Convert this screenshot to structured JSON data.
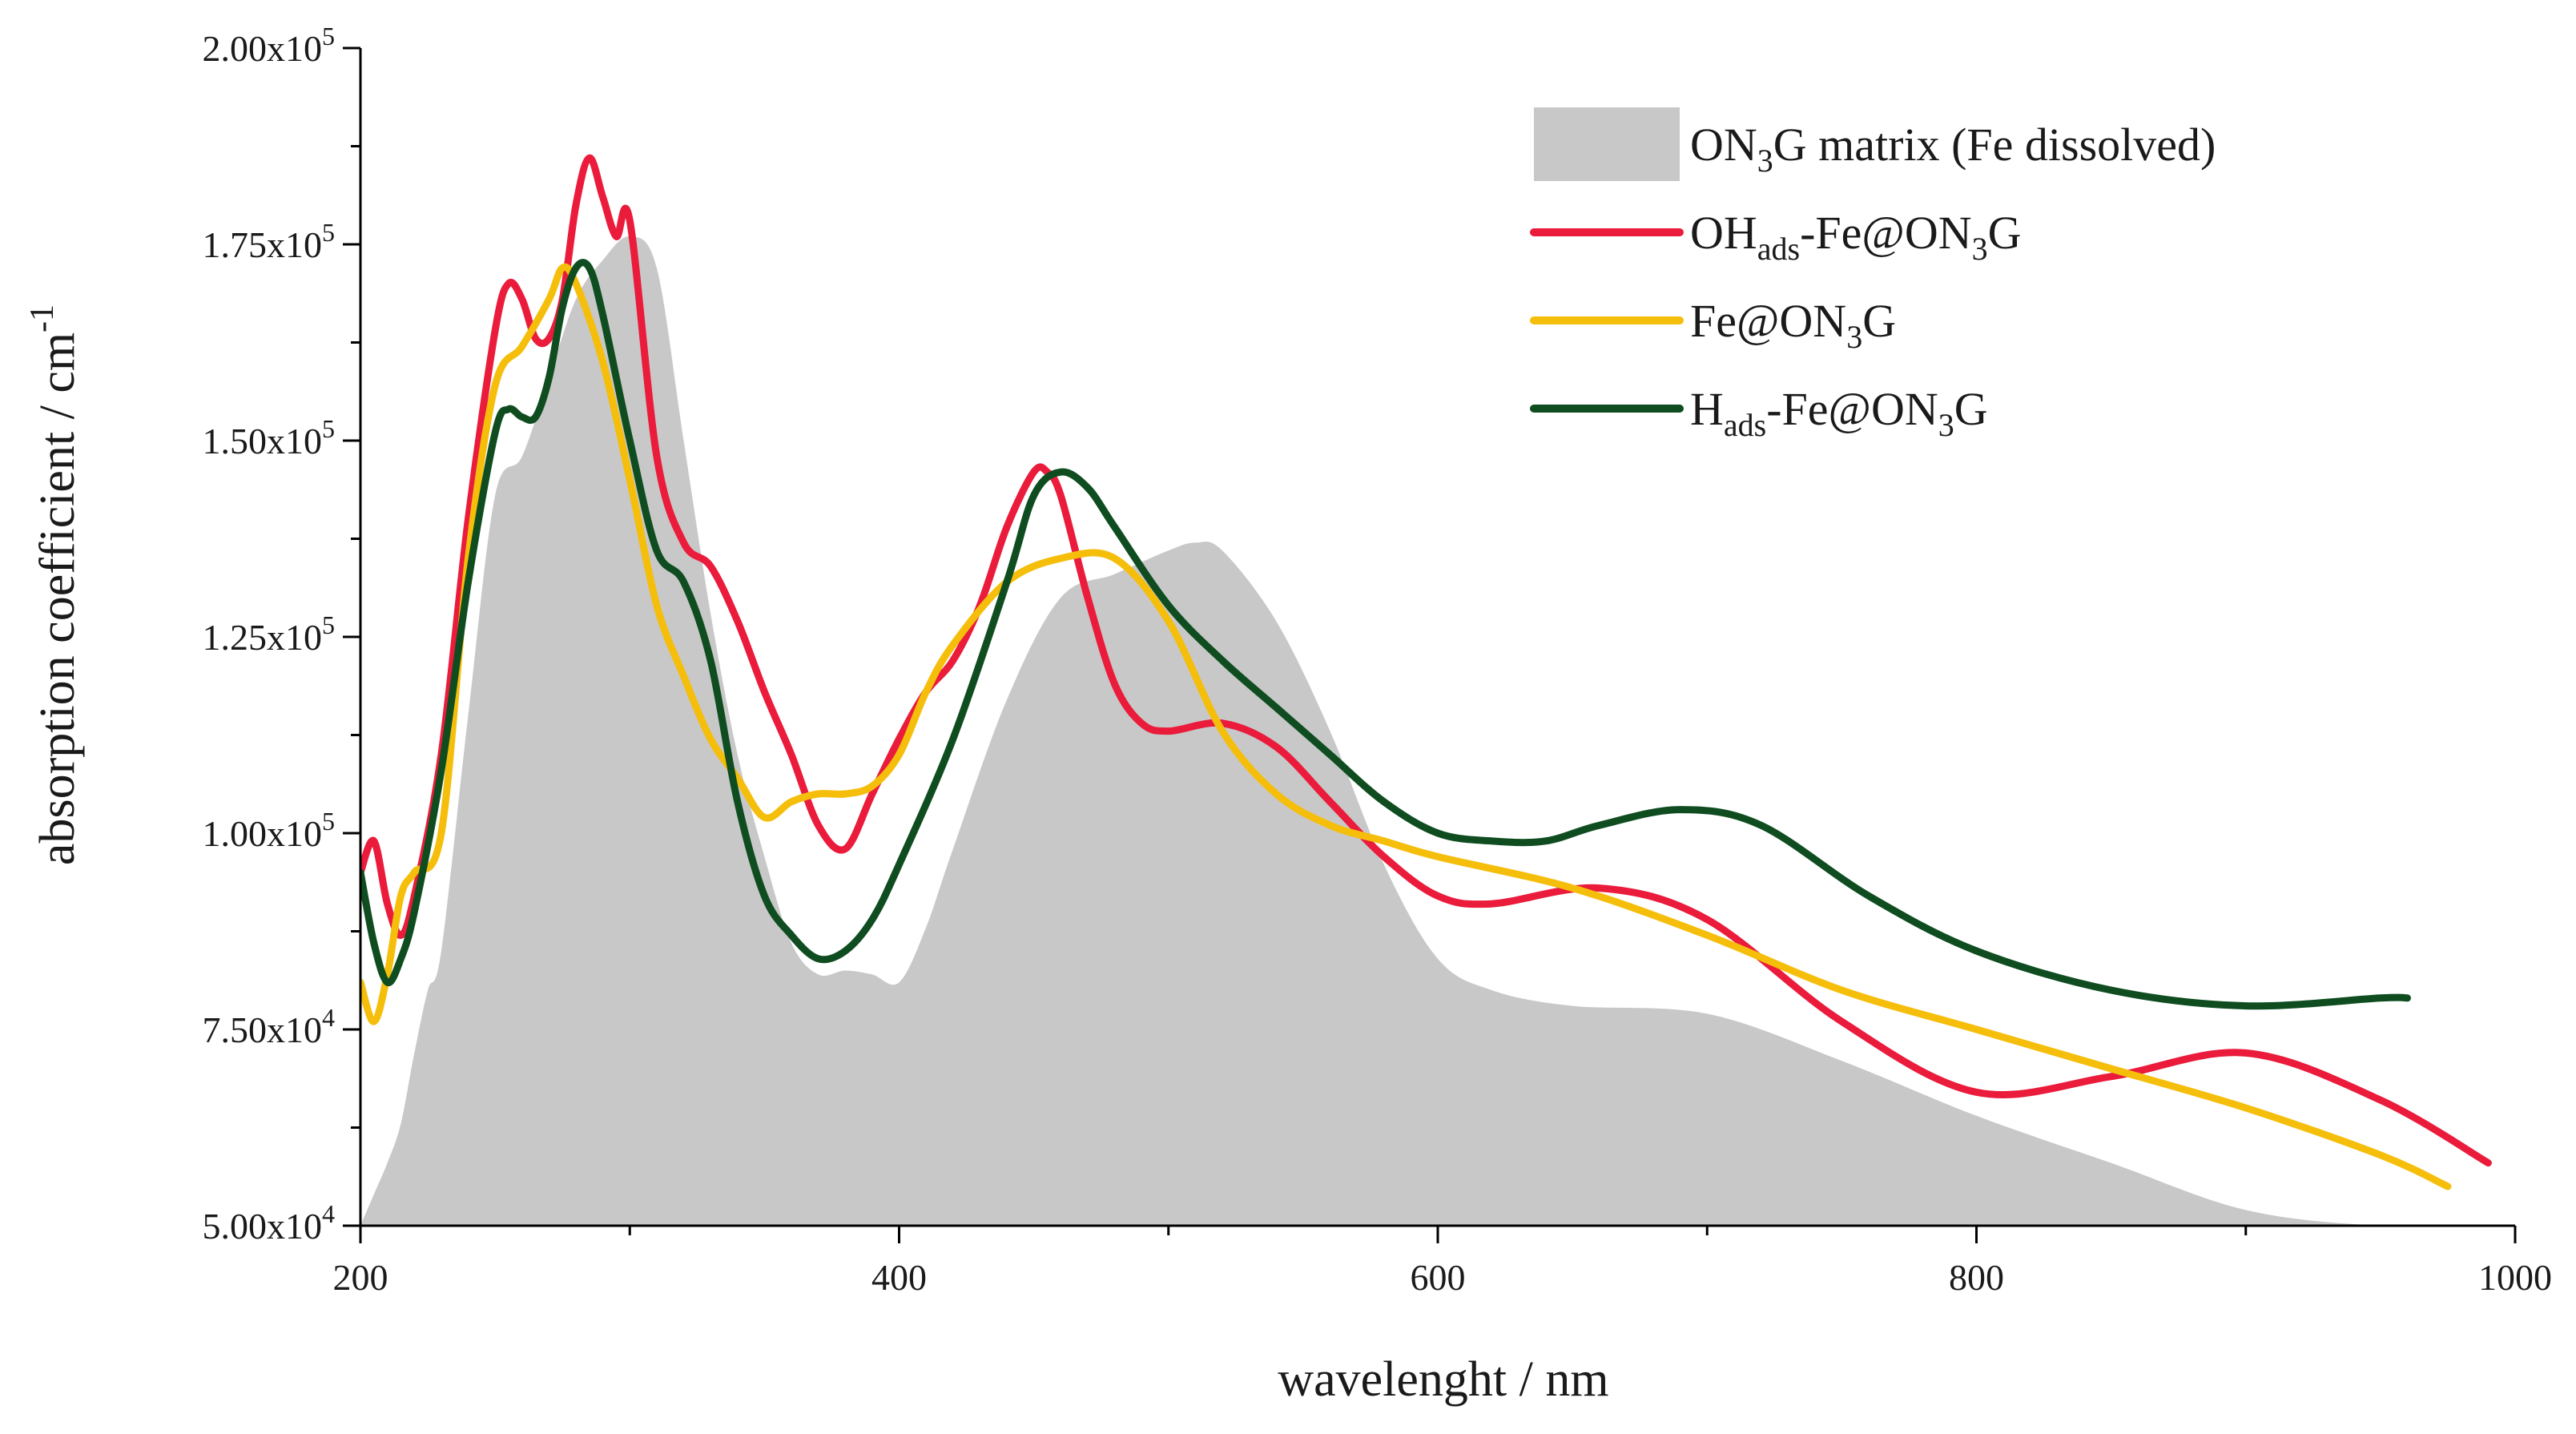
{
  "chart_data": {
    "type": "line",
    "title": "",
    "xlabel": "wavelenght / nm",
    "ylabel": "absorption coefficient / cm",
    "ylabel_superscript": "-1",
    "xlim": [
      200,
      1000
    ],
    "ylim": [
      50000,
      200000
    ],
    "x_ticks": [
      200,
      400,
      600,
      800,
      1000
    ],
    "y_ticks": [
      {
        "value": 50000,
        "mantissa": "5.00x10",
        "exp": "4"
      },
      {
        "value": 75000,
        "mantissa": "7.50x10",
        "exp": "4"
      },
      {
        "value": 100000,
        "mantissa": "1.00x10",
        "exp": "5"
      },
      {
        "value": 125000,
        "mantissa": "1.25x10",
        "exp": "5"
      },
      {
        "value": 150000,
        "mantissa": "1.50x10",
        "exp": "5"
      },
      {
        "value": 175000,
        "mantissa": "1.75x10",
        "exp": "5"
      },
      {
        "value": 200000,
        "mantissa": "2.00x10",
        "exp": "5"
      }
    ],
    "legend_position": "top-right",
    "series": [
      {
        "name": "ON3G matrix (Fe dissolved)",
        "label_parts": [
          [
            "ON",
            "n"
          ],
          [
            "3",
            "sub"
          ],
          [
            "G matrix (Fe dissolved)",
            "n"
          ]
        ],
        "style": "area",
        "color": "#c8c8c8",
        "x": [
          200,
          205,
          210,
          215,
          220,
          225,
          230,
          240,
          250,
          260,
          270,
          280,
          290,
          300,
          310,
          320,
          330,
          340,
          350,
          360,
          370,
          380,
          390,
          400,
          410,
          420,
          440,
          460,
          480,
          500,
          510,
          520,
          540,
          560,
          580,
          600,
          620,
          650,
          700,
          750,
          800,
          850,
          900,
          950,
          1000
        ],
        "y": [
          50000,
          54000,
          58000,
          63000,
          72000,
          80000,
          85000,
          115000,
          143000,
          148000,
          158000,
          168000,
          173000,
          176000,
          172000,
          150000,
          128000,
          110000,
          97000,
          86000,
          82000,
          82500,
          82000,
          81000,
          88000,
          98000,
          117000,
          130000,
          133000,
          136000,
          137000,
          136000,
          127000,
          113000,
          96000,
          84000,
          80000,
          78000,
          77000,
          71000,
          64000,
          58000,
          52000,
          50000,
          50000
        ]
      },
      {
        "name": "OHads-Fe@ON3G",
        "label_parts": [
          [
            "OH",
            "n"
          ],
          [
            "ads",
            "sub"
          ],
          [
            "-Fe@ON",
            "n"
          ],
          [
            "3",
            "sub"
          ],
          [
            "G",
            "n"
          ]
        ],
        "style": "line",
        "color": "#ea1b3b",
        "x": [
          200,
          205,
          210,
          215,
          220,
          230,
          240,
          250,
          255,
          260,
          265,
          270,
          275,
          280,
          285,
          290,
          295,
          300,
          310,
          320,
          330,
          340,
          350,
          360,
          370,
          380,
          390,
          400,
          410,
          420,
          430,
          440,
          450,
          455,
          460,
          470,
          480,
          490,
          500,
          520,
          540,
          560,
          580,
          600,
          620,
          660,
          700,
          750,
          800,
          850,
          900,
          950,
          990
        ],
        "y": [
          95000,
          99000,
          91000,
          87000,
          92000,
          110000,
          140000,
          164000,
          170000,
          168000,
          163000,
          163000,
          168000,
          180000,
          186000,
          181000,
          176000,
          178000,
          148000,
          137000,
          134000,
          127000,
          118000,
          110000,
          101000,
          98000,
          105000,
          112000,
          118000,
          122000,
          129000,
          139000,
          146000,
          146000,
          143000,
          130000,
          119000,
          114000,
          113000,
          114000,
          111000,
          104000,
          97000,
          92000,
          91000,
          93000,
          89000,
          76000,
          67000,
          69000,
          72000,
          66000,
          58000
        ]
      },
      {
        "name": "Fe@ON3G",
        "label_parts": [
          [
            "Fe@ON",
            "n"
          ],
          [
            "3",
            "sub"
          ],
          [
            "G",
            "n"
          ]
        ],
        "style": "line",
        "color": "#f5be0b",
        "x": [
          200,
          205,
          210,
          215,
          220,
          230,
          240,
          250,
          260,
          270,
          275,
          280,
          290,
          300,
          310,
          320,
          330,
          340,
          350,
          360,
          370,
          380,
          390,
          400,
          410,
          420,
          440,
          460,
          480,
          500,
          520,
          540,
          560,
          580,
          600,
          650,
          700,
          750,
          800,
          850,
          900,
          950,
          975
        ],
        "y": [
          81000,
          76000,
          82000,
          92000,
          95000,
          100000,
          135000,
          157000,
          162000,
          168000,
          172000,
          170000,
          160000,
          145000,
          129000,
          120000,
          112000,
          107000,
          102000,
          104000,
          105000,
          105000,
          106000,
          110000,
          118000,
          124000,
          132000,
          135000,
          135000,
          127000,
          113000,
          105000,
          101000,
          99000,
          97000,
          93000,
          87000,
          80000,
          75000,
          70000,
          65000,
          59000,
          55000
        ]
      },
      {
        "name": "Hads-Fe@ON3G",
        "label_parts": [
          [
            "H",
            "n"
          ],
          [
            "ads",
            "sub"
          ],
          [
            "-Fe@ON",
            "n"
          ],
          [
            "3",
            "sub"
          ],
          [
            "G",
            "n"
          ]
        ],
        "style": "line",
        "color": "#0f4d20",
        "x": [
          200,
          205,
          210,
          215,
          220,
          230,
          240,
          250,
          255,
          260,
          265,
          270,
          275,
          280,
          285,
          290,
          300,
          310,
          320,
          330,
          340,
          350,
          360,
          370,
          380,
          390,
          400,
          420,
          440,
          450,
          460,
          470,
          480,
          500,
          520,
          540,
          560,
          580,
          600,
          620,
          640,
          660,
          690,
          720,
          760,
          800,
          850,
          900,
          950,
          960
        ],
        "y": [
          95000,
          86000,
          81000,
          84000,
          90000,
          108000,
          132000,
          151000,
          154000,
          153000,
          153000,
          158000,
          167000,
          172000,
          172000,
          166000,
          150000,
          136000,
          132000,
          122000,
          104000,
          92000,
          87000,
          84000,
          85000,
          89000,
          96000,
          112000,
          132000,
          143000,
          146000,
          144000,
          139000,
          129000,
          122000,
          116000,
          110000,
          104000,
          100000,
          99000,
          99000,
          101000,
          103000,
          101000,
          92000,
          85000,
          80000,
          78000,
          79000,
          79000
        ]
      }
    ]
  }
}
